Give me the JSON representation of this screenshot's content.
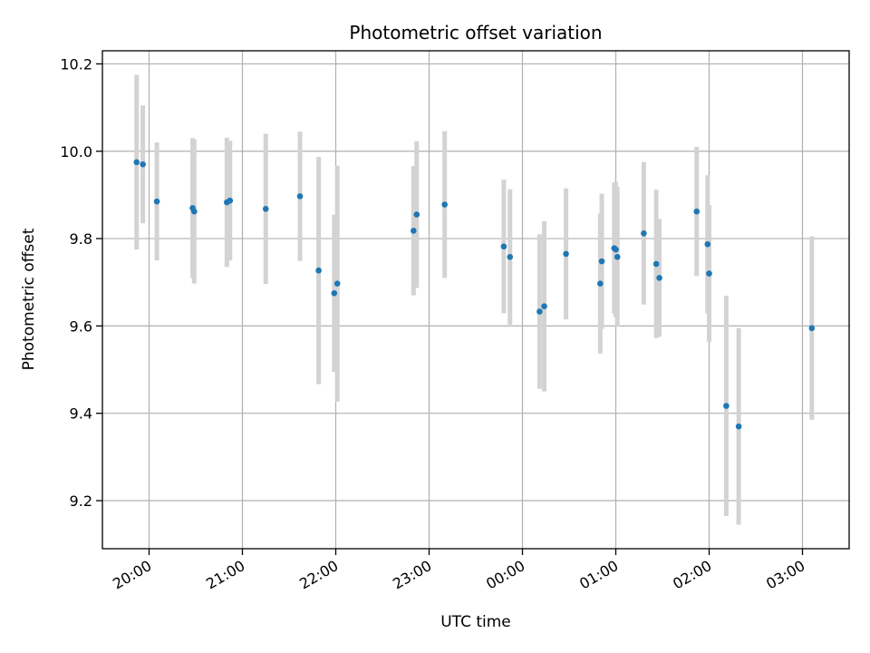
{
  "chart_data": {
    "type": "scatter",
    "title": "Photometric offset variation",
    "xlabel": "UTC time",
    "ylabel": "Photometric offset",
    "xlim": [
      "19:30",
      "03:30"
    ],
    "ylim": [
      9.09,
      10.23
    ],
    "grid": true,
    "point_color": "#1f77b4",
    "errorbar_color": "#d3d3d3",
    "x_ticks": [
      "20:00",
      "21:00",
      "22:00",
      "23:00",
      "00:00",
      "01:00",
      "02:00",
      "03:00"
    ],
    "y_ticks": [
      9.2,
      9.4,
      9.6,
      9.8,
      10.0,
      10.2
    ],
    "points": [
      {
        "t": "19:52",
        "y": 9.975,
        "err": 0.2
      },
      {
        "t": "19:56",
        "y": 9.97,
        "err": 0.135
      },
      {
        "t": "20:05",
        "y": 9.885,
        "err": 0.135
      },
      {
        "t": "20:28",
        "y": 9.87,
        "err": 0.16
      },
      {
        "t": "20:29",
        "y": 9.862,
        "err": 0.165
      },
      {
        "t": "20:50",
        "y": 9.883,
        "err": 0.148
      },
      {
        "t": "20:52",
        "y": 9.887,
        "err": 0.137
      },
      {
        "t": "21:15",
        "y": 9.868,
        "err": 0.172
      },
      {
        "t": "21:37",
        "y": 9.897,
        "err": 0.148
      },
      {
        "t": "21:49",
        "y": 9.727,
        "err": 0.26
      },
      {
        "t": "21:59",
        "y": 9.675,
        "err": 0.18
      },
      {
        "t": "22:01",
        "y": 9.697,
        "err": 0.27
      },
      {
        "t": "22:50",
        "y": 9.818,
        "err": 0.148
      },
      {
        "t": "22:52",
        "y": 9.855,
        "err": 0.168
      },
      {
        "t": "23:10",
        "y": 9.878,
        "err": 0.168
      },
      {
        "t": "23:48",
        "y": 9.782,
        "err": 0.153
      },
      {
        "t": "23:52",
        "y": 9.758,
        "err": 0.155
      },
      {
        "t": "00:11",
        "y": 9.633,
        "err": 0.177
      },
      {
        "t": "00:14",
        "y": 9.645,
        "err": 0.195
      },
      {
        "t": "00:28",
        "y": 9.765,
        "err": 0.15
      },
      {
        "t": "00:50",
        "y": 9.697,
        "err": 0.16
      },
      {
        "t": "00:51",
        "y": 9.748,
        "err": 0.155
      },
      {
        "t": "00:59",
        "y": 9.778,
        "err": 0.15
      },
      {
        "t": "01:00",
        "y": 9.775,
        "err": 0.155
      },
      {
        "t": "01:01",
        "y": 9.758,
        "err": 0.16
      },
      {
        "t": "01:18",
        "y": 9.812,
        "err": 0.163
      },
      {
        "t": "01:26",
        "y": 9.742,
        "err": 0.17
      },
      {
        "t": "01:28",
        "y": 9.71,
        "err": 0.135
      },
      {
        "t": "01:52",
        "y": 9.862,
        "err": 0.148
      },
      {
        "t": "01:59",
        "y": 9.787,
        "err": 0.158
      },
      {
        "t": "02:00",
        "y": 9.72,
        "err": 0.157
      },
      {
        "t": "02:11",
        "y": 9.417,
        "err": 0.252
      },
      {
        "t": "02:19",
        "y": 9.37,
        "err": 0.225
      },
      {
        "t": "03:06",
        "y": 9.595,
        "err": 0.21
      }
    ]
  }
}
